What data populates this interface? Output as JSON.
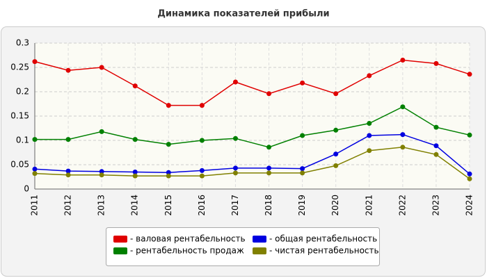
{
  "chart_data": {
    "type": "line",
    "title": "Динамика показателей прибыли",
    "x": [
      2011,
      2012,
      2013,
      2014,
      2015,
      2016,
      2017,
      2018,
      2019,
      2020,
      2021,
      2022,
      2023,
      2024
    ],
    "xlim": [
      2011,
      2024
    ],
    "xticks": [
      2011,
      2012,
      2013,
      2014,
      2015,
      2016,
      2017,
      2018,
      2019,
      2020,
      2021,
      2022,
      2023,
      2024
    ],
    "ylim": [
      0,
      0.3
    ],
    "yticks": [
      0,
      0.05,
      0.1,
      0.15,
      0.2,
      0.25,
      0.3
    ],
    "grid": true,
    "legend": "bottom",
    "series": [
      {
        "name": "- валовая рентабельность",
        "color": "#e00000",
        "values": [
          0.262,
          0.244,
          0.25,
          0.212,
          0.172,
          0.172,
          0.22,
          0.196,
          0.218,
          0.196,
          0.233,
          0.265,
          0.258,
          0.236
        ]
      },
      {
        "name": "- рентабельность продаж",
        "color": "#008000",
        "values": [
          0.102,
          0.102,
          0.118,
          0.102,
          0.092,
          0.1,
          0.104,
          0.086,
          0.11,
          0.121,
          0.135,
          0.169,
          0.127,
          0.111
        ]
      },
      {
        "name": "- общая рентабельность",
        "color": "#0000e0",
        "values": [
          0.041,
          0.037,
          0.036,
          0.035,
          0.034,
          0.038,
          0.043,
          0.043,
          0.042,
          0.072,
          0.11,
          0.112,
          0.089,
          0.031
        ]
      },
      {
        "name": "- чистая рентабельность",
        "color": "#808000",
        "values": [
          0.032,
          0.029,
          0.029,
          0.027,
          0.027,
          0.027,
          0.033,
          0.033,
          0.033,
          0.048,
          0.079,
          0.086,
          0.071,
          0.021
        ]
      }
    ]
  }
}
